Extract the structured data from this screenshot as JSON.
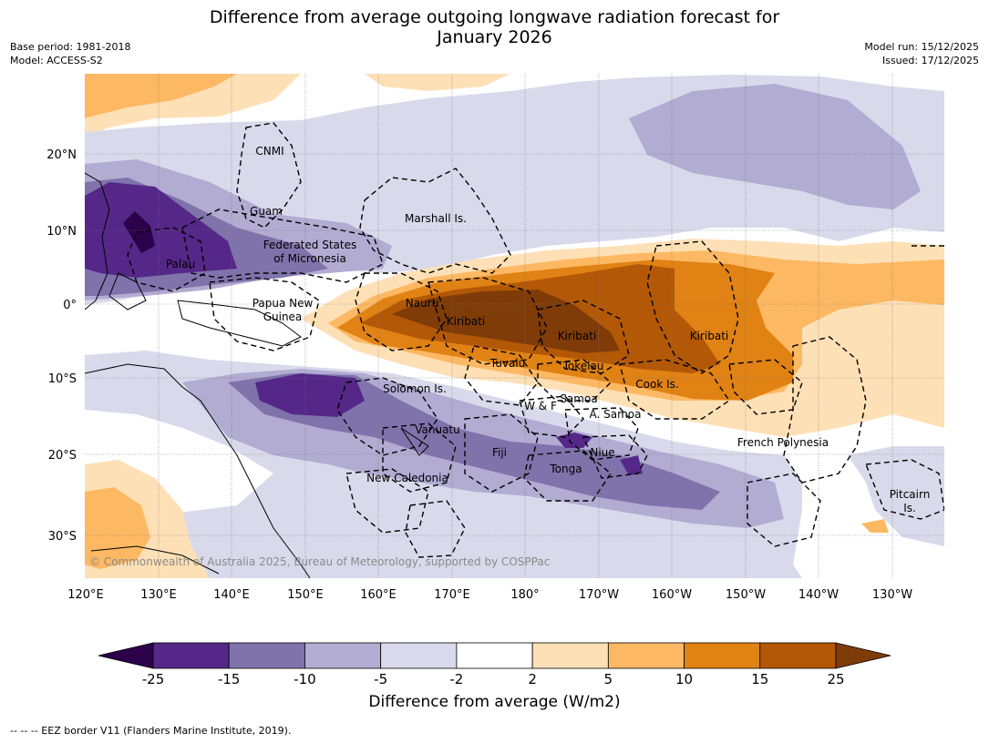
{
  "header": {
    "title_line1": "Difference from average outgoing longwave radiation forecast for",
    "title_line2": "January 2026",
    "base_period": "Base period: 1981-2018",
    "model": "Model: ACCESS-S2",
    "model_run": "Model run: 15/12/2025",
    "issued": "Issued: 17/12/2025"
  },
  "map": {
    "lon_ticks": [
      "120°E",
      "130°E",
      "140°E",
      "150°E",
      "160°E",
      "170°E",
      "180°",
      "170°W",
      "160°W",
      "150°W",
      "140°W",
      "130°W"
    ],
    "lat_ticks": [
      "20°N",
      "10°N",
      "0°",
      "10°S",
      "20°S",
      "30°S"
    ],
    "region_labels": {
      "cnmi": "CNMI",
      "guam": "Guam",
      "marshall": "Marshall Is.",
      "fsm1": "Federated States",
      "fsm2": "of Micronesia",
      "palau": "Palau",
      "png1": "Papua New",
      "png2": "Guinea",
      "nauru": "Nauru",
      "kiribati_w": "Kiribati",
      "kiribati_c": "Kiribati",
      "kiribati_e": "Kiribati",
      "tuvalu": "Tuvalu",
      "tokelau": "Tokelau",
      "cook": "Cook Is.",
      "solomon": "Solomon Is.",
      "wf": "W & F",
      "samoa": "Samoa",
      "asamoa": "A. Samoa",
      "vanuatu": "Vanuatu",
      "fiji": "Fiji",
      "niue": "Niue",
      "tonga": "Tonga",
      "newcal": "New Caledonia",
      "frpoly": "French Polynesia",
      "pitcairn1": "Pitcairn",
      "pitcairn2": "Is."
    },
    "copyright": "© Commonwealth of Australia 2025, Bureau of Meteorology, supported by COSPPac"
  },
  "colorbar": {
    "title": "Difference from average (W/m2)",
    "ticks": [
      "-25",
      "-15",
      "-10",
      "-5",
      "-2",
      "2",
      "5",
      "10",
      "15",
      "25"
    ],
    "colors": {
      "under": "#2d004b",
      "bins": [
        "#542788",
        "#8073ac",
        "#b2abd2",
        "#d8daeb",
        "#ffffff",
        "#fee0b6",
        "#fdb863",
        "#e08214",
        "#b35806"
      ],
      "over": "#7f3b08"
    }
  },
  "footer": {
    "legend_note": "--  --  -- EEZ border V11 (Flanders Marine Institute, 2019)."
  }
}
